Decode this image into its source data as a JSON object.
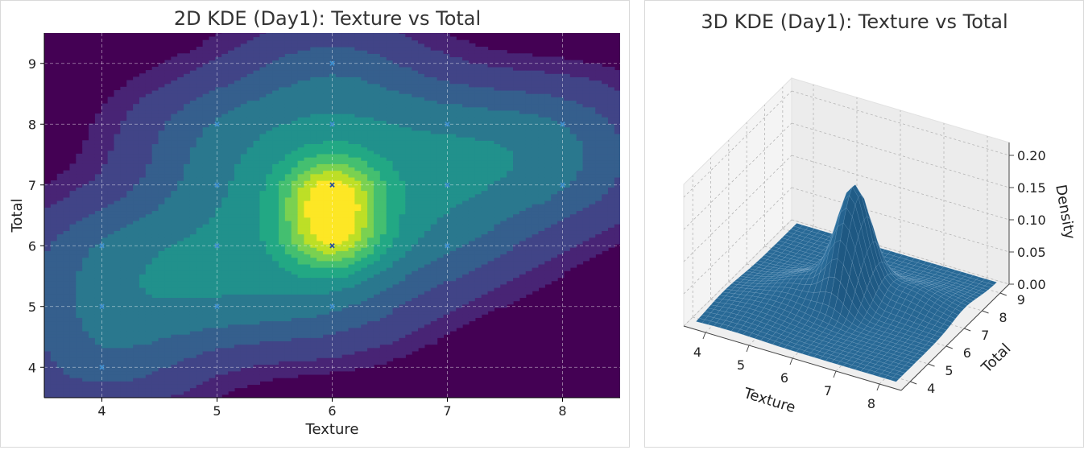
{
  "chart_data": [
    {
      "type": "heatmap",
      "subtype": "kde-2d-contour",
      "title": "2D KDE (Day1): Texture vs Total",
      "xlabel": "Texture",
      "ylabel": "Total",
      "xlim": [
        3.5,
        8.5
      ],
      "ylim": [
        3.5,
        9.5
      ],
      "xticks": [
        4,
        5,
        6,
        7,
        8
      ],
      "yticks": [
        4,
        5,
        6,
        7,
        8,
        9
      ],
      "grid": true,
      "colormap": "viridis",
      "points": [
        {
          "x": 4,
          "y": 4
        },
        {
          "x": 4,
          "y": 5
        },
        {
          "x": 4,
          "y": 6
        },
        {
          "x": 5,
          "y": 5
        },
        {
          "x": 5,
          "y": 6
        },
        {
          "x": 5,
          "y": 7
        },
        {
          "x": 5,
          "y": 8
        },
        {
          "x": 6,
          "y": 5
        },
        {
          "x": 6,
          "y": 6
        },
        {
          "x": 6,
          "y": 7
        },
        {
          "x": 6,
          "y": 8
        },
        {
          "x": 6,
          "y": 9
        },
        {
          "x": 7,
          "y": 6
        },
        {
          "x": 7,
          "y": 7
        },
        {
          "x": 7,
          "y": 8
        },
        {
          "x": 8,
          "y": 7
        },
        {
          "x": 8,
          "y": 8
        }
      ],
      "density_peaks": [
        {
          "x": 6,
          "y": 6.9,
          "level": 1.0
        },
        {
          "x": 6,
          "y": 6.15,
          "level": 0.9
        }
      ]
    },
    {
      "type": "surface-3d",
      "title": "3D KDE (Day1): Texture vs Total",
      "xlabel": "Texture",
      "ylabel": "Total",
      "zlabel": "Density",
      "xticks": [
        4,
        5,
        6,
        7,
        8
      ],
      "yticks": [
        4,
        5,
        6,
        7,
        8,
        9
      ],
      "zticks": [
        "0.00",
        "0.05",
        "0.10",
        "0.15",
        "0.20"
      ],
      "zlim": [
        0,
        0.22
      ],
      "peak_density": 0.21,
      "color": "#1f6f9f"
    }
  ],
  "colors": {
    "viridis": [
      "#440154",
      "#482475",
      "#414487",
      "#355f8d",
      "#2a788e",
      "#21918c",
      "#22a884",
      "#44bf70",
      "#7ad151",
      "#bddf26",
      "#fde725"
    ],
    "surface": "#1f6f9f",
    "points": "#3b7fd9"
  }
}
